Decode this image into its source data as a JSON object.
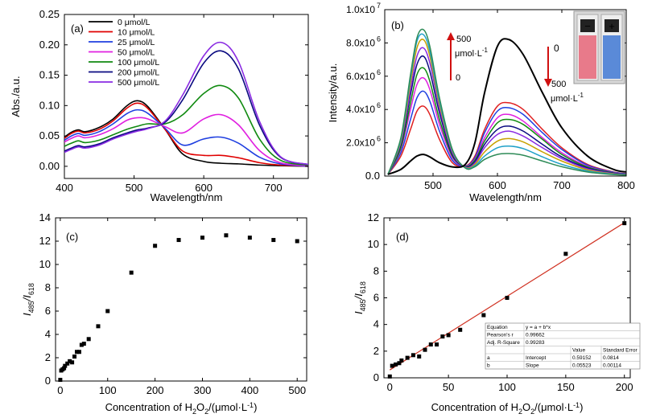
{
  "chart_data": [
    {
      "type": "line",
      "panel_label": "(a)",
      "xlabel": "Wavelength/nm",
      "ylabel": "Abs./a.u.",
      "xlim": [
        400,
        750
      ],
      "ylim": [
        -0.02,
        0.25
      ],
      "xticks": [
        "400",
        "500",
        "600",
        "700"
      ],
      "yticks": [
        "0.00",
        "0.05",
        "0.10",
        "0.15",
        "0.20",
        "0.25"
      ],
      "legend_position": "top-center",
      "x": [
        400,
        410,
        420,
        430,
        450,
        470,
        490,
        505,
        520,
        545,
        570,
        600,
        625,
        650,
        680,
        710,
        750
      ],
      "series": [
        {
          "name": "0 μmol/L",
          "color": "#000000",
          "values": [
            0.048,
            0.056,
            0.06,
            0.057,
            0.064,
            0.078,
            0.1,
            0.108,
            0.098,
            0.06,
            0.02,
            0.008,
            0.005,
            0.004,
            0.002,
            0.001,
            0.0
          ]
        },
        {
          "name": "10 μmol/L",
          "color": "#e00000",
          "values": [
            0.046,
            0.054,
            0.058,
            0.055,
            0.061,
            0.075,
            0.096,
            0.104,
            0.095,
            0.06,
            0.025,
            0.018,
            0.018,
            0.014,
            0.006,
            0.002,
            0.0
          ]
        },
        {
          "name": "25 μmol/L",
          "color": "#1f3fe0",
          "values": [
            0.043,
            0.05,
            0.054,
            0.051,
            0.057,
            0.07,
            0.087,
            0.093,
            0.087,
            0.062,
            0.035,
            0.045,
            0.048,
            0.038,
            0.015,
            0.004,
            0.0
          ]
        },
        {
          "name": "50 μmol/L",
          "color": "#e020e0",
          "values": [
            0.04,
            0.046,
            0.05,
            0.047,
            0.052,
            0.062,
            0.076,
            0.08,
            0.078,
            0.065,
            0.055,
            0.078,
            0.085,
            0.068,
            0.026,
            0.006,
            0.001
          ]
        },
        {
          "name": "100 μmol/L",
          "color": "#108a10",
          "values": [
            0.033,
            0.038,
            0.042,
            0.039,
            0.043,
            0.052,
            0.061,
            0.066,
            0.07,
            0.07,
            0.085,
            0.12,
            0.133,
            0.112,
            0.045,
            0.01,
            0.002
          ]
        },
        {
          "name": "200 μmol/L",
          "color": "#0a0a80",
          "values": [
            0.025,
            0.03,
            0.034,
            0.032,
            0.037,
            0.047,
            0.055,
            0.06,
            0.063,
            0.073,
            0.11,
            0.17,
            0.19,
            0.16,
            0.068,
            0.015,
            0.003
          ]
        },
        {
          "name": "500 μmol/L",
          "color": "#8a2be2",
          "values": [
            0.023,
            0.028,
            0.032,
            0.03,
            0.035,
            0.045,
            0.053,
            0.058,
            0.062,
            0.075,
            0.118,
            0.182,
            0.204,
            0.172,
            0.074,
            0.016,
            0.003
          ]
        }
      ]
    },
    {
      "type": "line",
      "panel_label": "(b)",
      "xlabel": "Wavelength/nm",
      "ylabel": "Intensity/a.u.",
      "xlim": [
        425,
        800
      ],
      "ylim": [
        0,
        10000000
      ],
      "xticks": [
        "500",
        "600",
        "700",
        "800"
      ],
      "yticks": [
        "0.0",
        "2.0x10",
        "4.0x10",
        "6.0x10",
        "8.0x10",
        "1.0x10"
      ],
      "ytick_exponents": [
        "",
        "6",
        "6",
        "6",
        "6",
        "7"
      ],
      "annotations": {
        "arrow_up_top": "500",
        "arrow_up_unit": "μmol·L",
        "arrow_up_unit_exp": "-1",
        "arrow_up_bottom": "0",
        "arrow_down_top": "0",
        "arrow_down_bottom": "500",
        "arrow_down_unit": "μmol·L",
        "arrow_down_unit_exp": "-1",
        "inset_left_sign": "−",
        "inset_right_sign": "+"
      },
      "x": [
        430,
        450,
        465,
        475,
        485,
        495,
        510,
        530,
        550,
        565,
        580,
        600,
        618,
        640,
        670,
        700,
        740,
        780,
        800
      ],
      "series": [
        {
          "name": "0 μmol/L",
          "color": "#000000",
          "values": [
            100000,
            400000,
            900000,
            1200000,
            1300000,
            1150000,
            800000,
            550000,
            700000,
            2000000,
            5000000,
            7800000,
            8200000,
            7300000,
            5000000,
            2900000,
            1200000,
            400000,
            250000
          ]
        },
        {
          "color": "#e02020",
          "values": [
            100000,
            1200000,
            2800000,
            3900000,
            4200000,
            3700000,
            2200000,
            800000,
            600000,
            1200000,
            2800000,
            4200000,
            4400000,
            4000000,
            2800000,
            1700000,
            700000,
            250000,
            150000
          ]
        },
        {
          "color": "#1f3fe0",
          "values": [
            100000,
            1400000,
            3400000,
            4700000,
            5100000,
            4500000,
            2700000,
            950000,
            600000,
            1100000,
            2600000,
            3900000,
            4100000,
            3700000,
            2600000,
            1600000,
            650000,
            230000,
            140000
          ]
        },
        {
          "color": "#e020e0",
          "values": [
            100000,
            1600000,
            4000000,
            5500000,
            5900000,
            5200000,
            3100000,
            1100000,
            600000,
            1000000,
            2300000,
            3500000,
            3700000,
            3300000,
            2300000,
            1400000,
            580000,
            200000,
            120000
          ]
        },
        {
          "color": "#108a10",
          "values": [
            100000,
            1700000,
            4400000,
            6100000,
            6500000,
            5700000,
            3400000,
            1200000,
            580000,
            950000,
            2100000,
            3200000,
            3400000,
            3100000,
            2200000,
            1300000,
            540000,
            190000,
            110000
          ]
        },
        {
          "color": "#0a0a80",
          "values": [
            100000,
            1900000,
            4900000,
            6700000,
            7200000,
            6300000,
            3800000,
            1300000,
            560000,
            850000,
            1900000,
            2800000,
            3000000,
            2700000,
            1900000,
            1150000,
            480000,
            170000,
            100000
          ]
        },
        {
          "color": "#8a2be2",
          "values": [
            100000,
            2000000,
            5200000,
            7200000,
            7700000,
            6800000,
            4100000,
            1400000,
            540000,
            780000,
            1700000,
            2500000,
            2700000,
            2400000,
            1700000,
            1050000,
            430000,
            150000,
            90000
          ]
        },
        {
          "color": "#c8a000",
          "values": [
            100000,
            2100000,
            5600000,
            7700000,
            8200000,
            7200000,
            4300000,
            1500000,
            520000,
            700000,
            1450000,
            2100000,
            2250000,
            2050000,
            1450000,
            900000,
            370000,
            130000,
            80000
          ]
        },
        {
          "color": "#1fa0c8",
          "values": [
            100000,
            2200000,
            5900000,
            8100000,
            8500000,
            7500000,
            4500000,
            1550000,
            500000,
            620000,
            1200000,
            1700000,
            1800000,
            1650000,
            1150000,
            700000,
            300000,
            110000,
            70000
          ]
        },
        {
          "color": "#2e8b57",
          "values": [
            100000,
            2300000,
            6100000,
            8300000,
            8800000,
            7800000,
            4700000,
            1600000,
            480000,
            560000,
            1000000,
            1300000,
            1350000,
            1250000,
            900000,
            560000,
            240000,
            90000,
            60000
          ]
        }
      ]
    },
    {
      "type": "scatter",
      "panel_label": "(c)",
      "xlabel": "Concentration of H2O2/(μmol·L-1)",
      "xlabel_parts": [
        "Concentration of H",
        "2",
        "O",
        "2",
        "/(μmol·L",
        "-1",
        ")"
      ],
      "ylabel": "I485/I618",
      "ylabel_parts": [
        "I",
        "485",
        "/I",
        "618"
      ],
      "xlim": [
        -10,
        520
      ],
      "ylim": [
        0,
        14
      ],
      "xticks": [
        "0",
        "100",
        "200",
        "300",
        "400",
        "500"
      ],
      "yticks": [
        "0",
        "2",
        "4",
        "6",
        "8",
        "10",
        "12",
        "14"
      ],
      "x": [
        0,
        2,
        5,
        8,
        10,
        15,
        20,
        25,
        30,
        35,
        40,
        45,
        50,
        60,
        80,
        100,
        150,
        200,
        250,
        300,
        350,
        400,
        450,
        500
      ],
      "y": [
        0.1,
        0.9,
        1.0,
        1.1,
        1.3,
        1.5,
        1.7,
        1.6,
        2.1,
        2.5,
        2.5,
        3.1,
        3.2,
        3.6,
        4.7,
        6.0,
        9.3,
        11.6,
        12.1,
        12.3,
        12.5,
        12.3,
        12.1,
        12.0
      ]
    },
    {
      "type": "scatter",
      "panel_label": "(d)",
      "xlabel": "Concentration of H2O2/(μmol·L-1)",
      "xlabel_parts": [
        "Concentration of H",
        "2",
        "O",
        "2",
        "/(μmol·L",
        "-1",
        ")"
      ],
      "ylabel": "I485/I618",
      "ylabel_parts": [
        "I",
        "485",
        "/I",
        "618"
      ],
      "xlim": [
        -5,
        205
      ],
      "ylim": [
        0,
        12
      ],
      "xticks": [
        "0",
        "50",
        "100",
        "150",
        "200"
      ],
      "yticks": [
        "0",
        "2",
        "4",
        "6",
        "8",
        "10",
        "12"
      ],
      "x": [
        0,
        2,
        5,
        8,
        10,
        15,
        20,
        25,
        30,
        35,
        40,
        45,
        50,
        60,
        80,
        100,
        150,
        200
      ],
      "y": [
        0.1,
        0.9,
        1.0,
        1.1,
        1.3,
        1.5,
        1.7,
        1.6,
        2.1,
        2.5,
        2.5,
        3.1,
        3.2,
        3.6,
        4.7,
        6.0,
        9.3,
        11.6
      ],
      "fit": {
        "intercept": 0.59152,
        "slope": 0.05523,
        "color": "#d03020"
      },
      "fit_table": {
        "rows": [
          [
            "Equation",
            "y = a + b*x",
            "",
            ""
          ],
          [
            "Pearson's r",
            "0.99662",
            "",
            ""
          ],
          [
            "Adj. R-Square",
            "0.99283",
            "",
            ""
          ],
          [
            "",
            "",
            "Value",
            "Standard Error"
          ],
          [
            "a",
            "Intercept",
            "0.59152",
            "0.0814"
          ],
          [
            "b",
            "Slope",
            "0.05523",
            "0.00114"
          ]
        ]
      }
    }
  ]
}
